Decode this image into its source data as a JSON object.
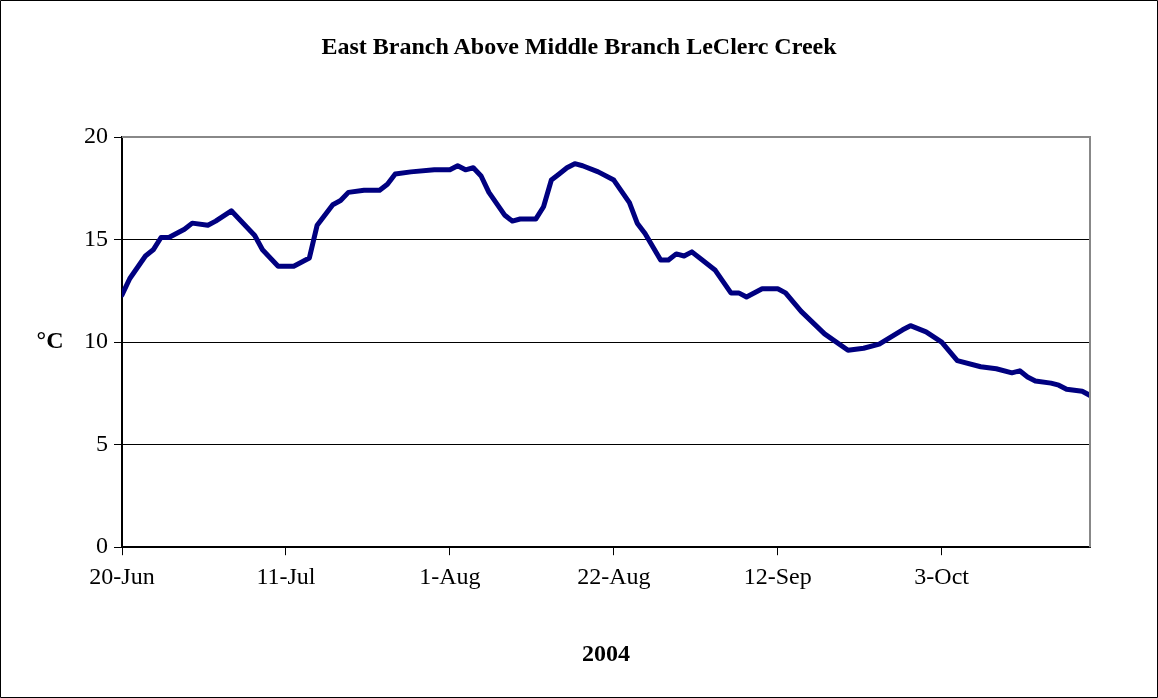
{
  "chart_data": {
    "type": "line",
    "title": "East Branch Above Middle Branch LeClerc Creek",
    "xlabel": "2004",
    "ylabel": "°C",
    "x": [
      "2004-06-20",
      "2004-06-21",
      "2004-06-23",
      "2004-06-24",
      "2004-06-25",
      "2004-06-26",
      "2004-06-28",
      "2004-06-29",
      "2004-07-01",
      "2004-07-02",
      "2004-07-04",
      "2004-07-05",
      "2004-07-07",
      "2004-07-08",
      "2004-07-10",
      "2004-07-12",
      "2004-07-14",
      "2004-07-15",
      "2004-07-17",
      "2004-07-18",
      "2004-07-19",
      "2004-07-21",
      "2004-07-23",
      "2004-07-24",
      "2004-07-25",
      "2004-07-27",
      "2004-07-30",
      "2004-08-01",
      "2004-08-02",
      "2004-08-03",
      "2004-08-04",
      "2004-08-05",
      "2004-08-06",
      "2004-08-08",
      "2004-08-09",
      "2004-08-10",
      "2004-08-12",
      "2004-08-13",
      "2004-08-14",
      "2004-08-15",
      "2004-08-16",
      "2004-08-17",
      "2004-08-18",
      "2004-08-20",
      "2004-08-22",
      "2004-08-24",
      "2004-08-25",
      "2004-08-26",
      "2004-08-28",
      "2004-08-29",
      "2004-08-30",
      "2004-08-31",
      "2004-09-01",
      "2004-09-04",
      "2004-09-06",
      "2004-09-07",
      "2004-09-08",
      "2004-09-10",
      "2004-09-12",
      "2004-09-13",
      "2004-09-15",
      "2004-09-18",
      "2004-09-21",
      "2004-09-23",
      "2004-09-25",
      "2004-09-28",
      "2004-09-29",
      "2004-10-01",
      "2004-10-03",
      "2004-10-05",
      "2004-10-08",
      "2004-10-10",
      "2004-10-12",
      "2004-10-13",
      "2004-10-14",
      "2004-10-15",
      "2004-10-17",
      "2004-10-18",
      "2004-10-19",
      "2004-10-21",
      "2004-10-22"
    ],
    "series": [
      {
        "color": "#000080",
        "values": [
          12.3,
          13.1,
          14.2,
          14.5,
          15.1,
          15.1,
          15.5,
          15.8,
          15.7,
          15.9,
          16.4,
          16.0,
          15.2,
          14.5,
          13.7,
          13.7,
          14.1,
          15.7,
          16.7,
          16.9,
          17.3,
          17.4,
          17.4,
          17.7,
          18.2,
          18.3,
          18.4,
          18.4,
          18.6,
          18.4,
          18.5,
          18.1,
          17.3,
          16.2,
          15.9,
          16.0,
          16.0,
          16.6,
          17.9,
          18.2,
          18.5,
          18.7,
          18.6,
          18.3,
          17.9,
          16.8,
          15.8,
          15.3,
          14.0,
          14.0,
          14.3,
          14.2,
          14.4,
          13.5,
          12.4,
          12.4,
          12.2,
          12.6,
          12.6,
          12.4,
          11.5,
          10.4,
          9.6,
          9.7,
          9.9,
          10.6,
          10.8,
          10.5,
          10.0,
          9.1,
          8.8,
          8.7,
          8.5,
          8.6,
          8.3,
          8.1,
          8.0,
          7.9,
          7.7,
          7.6,
          7.4
        ]
      }
    ],
    "xlim": [
      "2004-06-20",
      "2004-10-22"
    ],
    "xticks": [
      {
        "value": "2004-06-20",
        "label": "20-Jun"
      },
      {
        "value": "2004-07-11",
        "label": "11-Jul"
      },
      {
        "value": "2004-08-01",
        "label": "1-Aug"
      },
      {
        "value": "2004-08-22",
        "label": "22-Aug"
      },
      {
        "value": "2004-09-12",
        "label": "12-Sep"
      },
      {
        "value": "2004-10-03",
        "label": "3-Oct"
      }
    ],
    "ylim": [
      0,
      20
    ],
    "yticks": [
      0,
      5,
      10,
      15,
      20
    ],
    "grid": "y",
    "legend": false,
    "marker": "none",
    "line_style": "solid"
  }
}
